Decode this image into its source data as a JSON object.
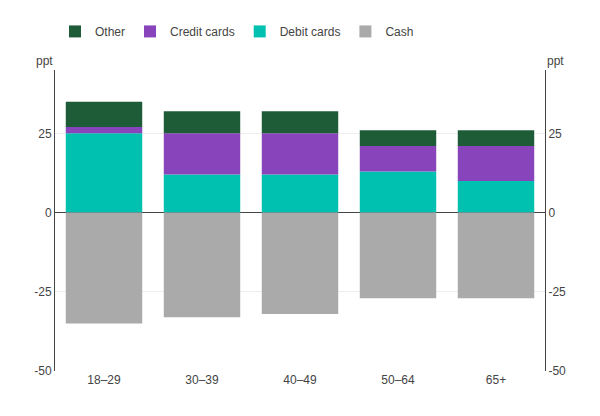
{
  "chart_data": {
    "type": "bar",
    "stacked": true,
    "categories": [
      "18–29",
      "30–39",
      "40–49",
      "50–64",
      "65+"
    ],
    "series": [
      {
        "name": "Debit cards",
        "color": "#00c0b0",
        "values": [
          25,
          12,
          12,
          13,
          10
        ]
      },
      {
        "name": "Credit cards",
        "color": "#8844bb",
        "values": [
          2,
          13,
          13,
          8,
          11
        ]
      },
      {
        "name": "Other",
        "color": "#1e5c38",
        "values": [
          8,
          7,
          7,
          5,
          5
        ]
      },
      {
        "name": "Cash",
        "color": "#aaaaaa",
        "values": [
          -35,
          -33,
          -32,
          -27,
          -27
        ]
      }
    ],
    "ylabel": "ppt",
    "y2label": "ppt",
    "ylim": [
      -50,
      45
    ],
    "yticks": [
      -50,
      -25,
      0,
      25
    ],
    "y2lim": [
      -50,
      45
    ],
    "y2ticks": [
      -50,
      -25,
      0,
      25
    ],
    "grid": true,
    "legend": "upper left"
  }
}
